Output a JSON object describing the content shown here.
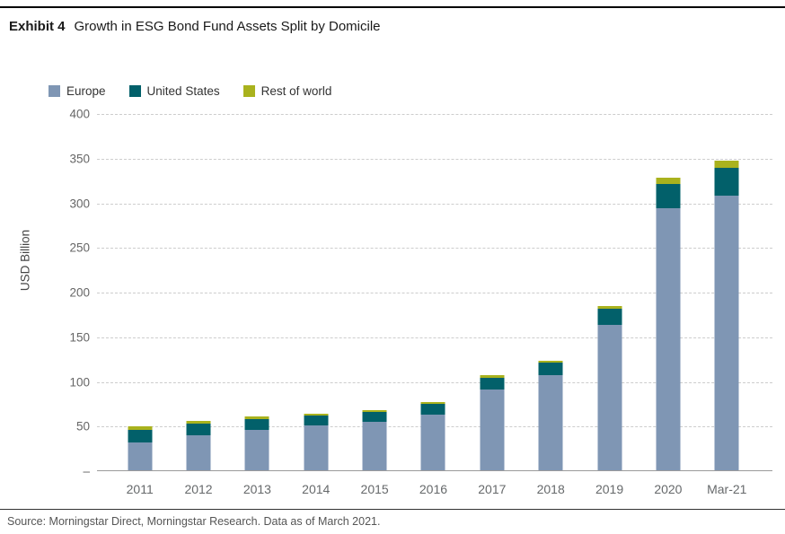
{
  "page": {
    "title_prefix": "Exhibit 4",
    "title": "Growth in ESG Bond Fund Assets Split by Domicile",
    "source": "Source: Morningstar Direct, Morningstar Research. Data as of March 2021."
  },
  "colors": {
    "europe": "#7f96b4",
    "united_states": "#02606a",
    "rest_of_world": "#a9b21d",
    "gridline": "#cdcdcd",
    "baseline": "#9b9b9b",
    "axis_text": "#666666",
    "top_rule": "#000000"
  },
  "chart_data": {
    "type": "bar",
    "stacked": true,
    "title": "Growth in ESG Bond Fund Assets Split by Domicile",
    "xlabel": "",
    "ylabel": "USD Billion",
    "ylim": [
      0,
      400
    ],
    "ytick_interval": 50,
    "ytick_labels": [
      "400",
      "350",
      "300",
      "250",
      "200",
      "150",
      "100",
      "50",
      "–"
    ],
    "grid": "horizontal-dashed",
    "legend_position": "top-left",
    "categories": [
      "2011",
      "2012",
      "2013",
      "2014",
      "2015",
      "2016",
      "2017",
      "2018",
      "2019",
      "2020",
      "Mar-21"
    ],
    "series": [
      {
        "name": "Europe",
        "color": "#7f96b4",
        "values": [
          32,
          40,
          46,
          51,
          55,
          63,
          91,
          108,
          164,
          294,
          309
        ]
      },
      {
        "name": "United States",
        "color": "#02606a",
        "values": [
          14,
          13,
          12,
          11,
          11,
          12,
          14,
          14,
          18,
          28,
          31
        ]
      },
      {
        "name": "Rest of world",
        "color": "#a9b21d",
        "values": [
          4,
          3,
          3,
          2,
          2,
          2,
          3,
          2,
          3,
          7,
          8
        ]
      }
    ],
    "totals": [
      50,
      56,
      61,
      64,
      68,
      77,
      108,
      124,
      185,
      329,
      348
    ]
  }
}
